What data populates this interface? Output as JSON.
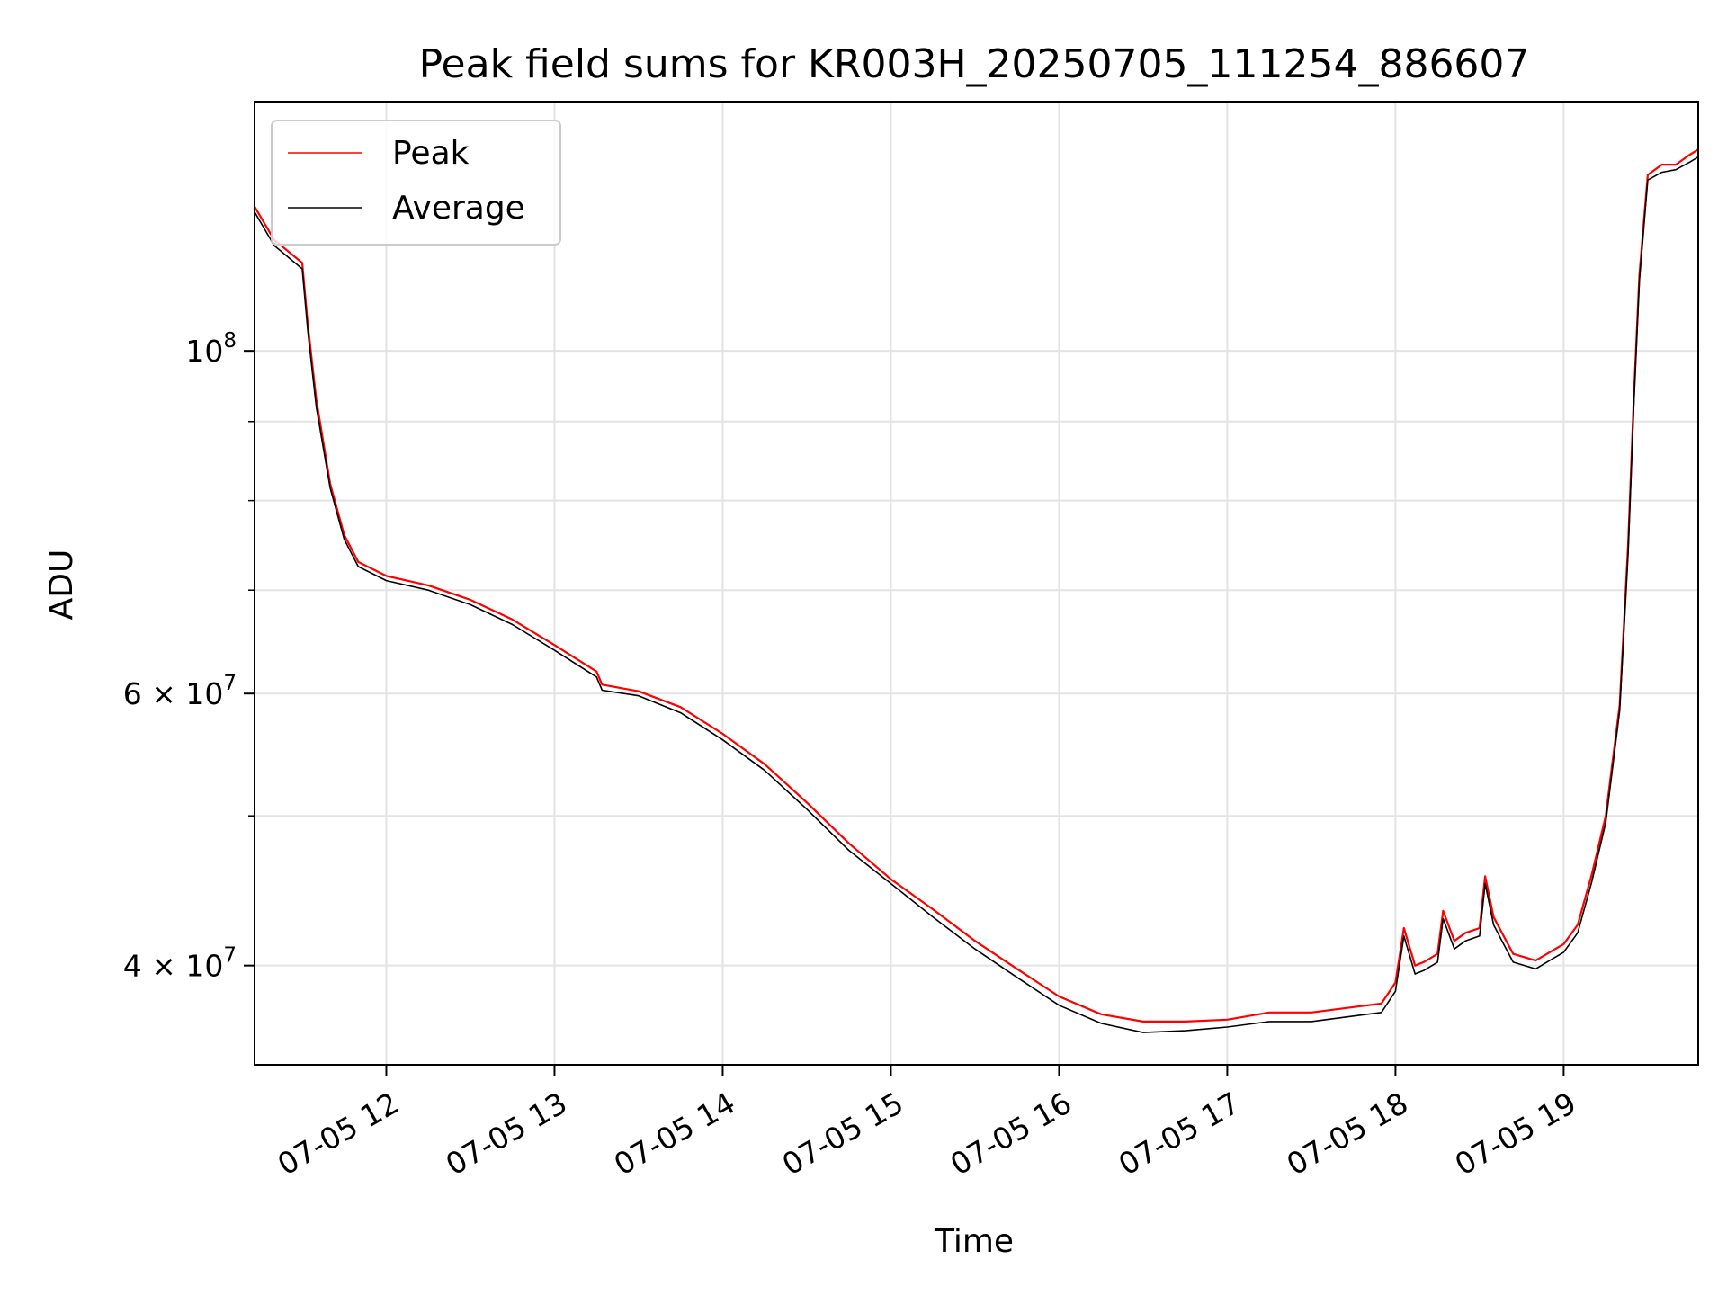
{
  "chart_data": {
    "type": "line",
    "title": "Peak field sums for KR003H_20250705_111254_886607",
    "xlabel": "Time",
    "ylabel": "ADU",
    "y_scale": "log",
    "ylim": [
      34500000,
      145000000
    ],
    "xlim": [
      "2025-07-05 11:13",
      "2025-07-05 19:48"
    ],
    "grid": true,
    "legend_position": "top-left",
    "x_tick_labels": [
      "07-05 12",
      "07-05 13",
      "07-05 14",
      "07-05 15",
      "07-05 16",
      "07-05 17",
      "07-05 18",
      "07-05 19"
    ],
    "x_ticks": [
      "2025-07-05 12:00",
      "2025-07-05 13:00",
      "2025-07-05 14:00",
      "2025-07-05 15:00",
      "2025-07-05 16:00",
      "2025-07-05 17:00",
      "2025-07-05 18:00",
      "2025-07-05 19:00"
    ],
    "y_tick_labels": [
      {
        "value": 100000000,
        "base": "10",
        "exp": "8"
      },
      {
        "value": 60000000,
        "base": "6 × 10",
        "exp": "7"
      },
      {
        "value": 40000000,
        "base": "4 × 10",
        "exp": "7"
      }
    ],
    "y_minor_ticks": [
      90000000,
      80000000,
      70000000,
      50000000
    ],
    "x": [
      "2025-07-05 11:13",
      "2025-07-05 11:20",
      "2025-07-05 11:30",
      "2025-07-05 11:32",
      "2025-07-05 11:35",
      "2025-07-05 11:40",
      "2025-07-05 11:45",
      "2025-07-05 11:50",
      "2025-07-05 12:00",
      "2025-07-05 12:15",
      "2025-07-05 12:30",
      "2025-07-05 12:45",
      "2025-07-05 13:00",
      "2025-07-05 13:15",
      "2025-07-05 13:17",
      "2025-07-05 13:30",
      "2025-07-05 13:45",
      "2025-07-05 14:00",
      "2025-07-05 14:15",
      "2025-07-05 14:30",
      "2025-07-05 14:45",
      "2025-07-05 15:00",
      "2025-07-05 15:15",
      "2025-07-05 15:30",
      "2025-07-05 15:45",
      "2025-07-05 16:00",
      "2025-07-05 16:15",
      "2025-07-05 16:30",
      "2025-07-05 16:45",
      "2025-07-05 17:00",
      "2025-07-05 17:15",
      "2025-07-05 17:30",
      "2025-07-05 17:45",
      "2025-07-05 17:55",
      "2025-07-05 18:00",
      "2025-07-05 18:03",
      "2025-07-05 18:07",
      "2025-07-05 18:10",
      "2025-07-05 18:15",
      "2025-07-05 18:17",
      "2025-07-05 18:21",
      "2025-07-05 18:25",
      "2025-07-05 18:30",
      "2025-07-05 18:32",
      "2025-07-05 18:35",
      "2025-07-05 18:38",
      "2025-07-05 18:42",
      "2025-07-05 18:50",
      "2025-07-05 18:55",
      "2025-07-05 19:00",
      "2025-07-05 19:05",
      "2025-07-05 19:10",
      "2025-07-05 19:15",
      "2025-07-05 19:20",
      "2025-07-05 19:23",
      "2025-07-05 19:25",
      "2025-07-05 19:27",
      "2025-07-05 19:30",
      "2025-07-05 19:35",
      "2025-07-05 19:40",
      "2025-07-05 19:45",
      "2025-07-05 19:48"
    ],
    "series": [
      {
        "name": "Peak",
        "color": "#ff0000",
        "values": [
          124000000,
          118000000,
          114000000,
          104000000,
          93000000,
          82000000,
          76000000,
          73000000,
          71500000,
          70500000,
          69000000,
          67000000,
          64500000,
          62000000,
          60800000,
          60200000,
          58800000,
          56500000,
          54000000,
          51000000,
          48000000,
          45500000,
          43500000,
          41500000,
          39800000,
          38200000,
          37200000,
          36800000,
          36800000,
          36900000,
          37300000,
          37300000,
          37600000,
          37800000,
          39000000,
          42300000,
          40000000,
          40200000,
          40700000,
          43400000,
          41500000,
          42000000,
          42300000,
          45700000,
          43000000,
          42000000,
          40700000,
          40300000,
          40800000,
          41300000,
          42500000,
          45800000,
          50000000,
          59000000,
          75000000,
          93000000,
          112000000,
          130000000,
          132000000,
          132000000,
          134000000,
          135000000
        ]
      },
      {
        "name": "Average",
        "color": "#000000",
        "values": [
          123000000,
          117000000,
          113000000,
          103000000,
          92000000,
          81500000,
          75500000,
          72500000,
          71000000,
          70000000,
          68500000,
          66500000,
          64000000,
          61500000,
          60300000,
          59800000,
          58300000,
          56000000,
          53500000,
          50500000,
          47500000,
          45200000,
          43000000,
          41000000,
          39300000,
          37700000,
          36700000,
          36200000,
          36300000,
          36500000,
          36800000,
          36800000,
          37100000,
          37300000,
          38500000,
          41800000,
          39500000,
          39700000,
          40200000,
          42900000,
          41000000,
          41500000,
          41800000,
          45200000,
          42500000,
          41500000,
          40200000,
          39800000,
          40300000,
          40800000,
          42000000,
          45300000,
          49500000,
          58500000,
          74000000,
          92000000,
          111000000,
          129000000,
          130500000,
          131000000,
          132500000,
          133500000
        ]
      }
    ]
  }
}
